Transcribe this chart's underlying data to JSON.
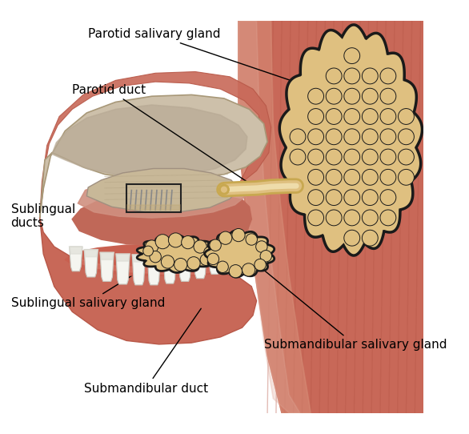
{
  "bg_color": "#ffffff",
  "labels": {
    "parotid_salivary_gland": "Parotid salivary gland",
    "parotid_duct": "Parotid duct",
    "sublingual_ducts": "Sublingual\nducts",
    "sublingual_salivary_gland": "Sublingual salivary gland",
    "submandibular_salivary_gland": "Submandibular salivary gland",
    "submandibular_duct": "Submandibular duct"
  },
  "colors": {
    "gland_fill": "#dfc080",
    "gland_outline": "#1a1a1a",
    "gland_fill2": "#e8c87a",
    "duct_fill": "#dfc080",
    "duct_dark": "#c8a850",
    "muscle_main": "#c86858",
    "muscle_stripe": "#b85848",
    "muscle_light": "#d8907a",
    "muscle_highlight": "#e0a898",
    "skin_light": "#e8b090",
    "jaw_fill": "#cdc0aa",
    "jaw_inner": "#b8aa95",
    "gum_fill": "#c86050",
    "gum_highlight": "#d87868",
    "tooth_white": "#f5f5f0",
    "tooth_shadow": "#ddddd5",
    "mouth_inner": "#c06858",
    "sublingual_tissue": "#c8b898",
    "text_color": "#000000",
    "line_color": "#000000"
  },
  "figsize": [
    5.86,
    5.42
  ],
  "dpi": 100
}
